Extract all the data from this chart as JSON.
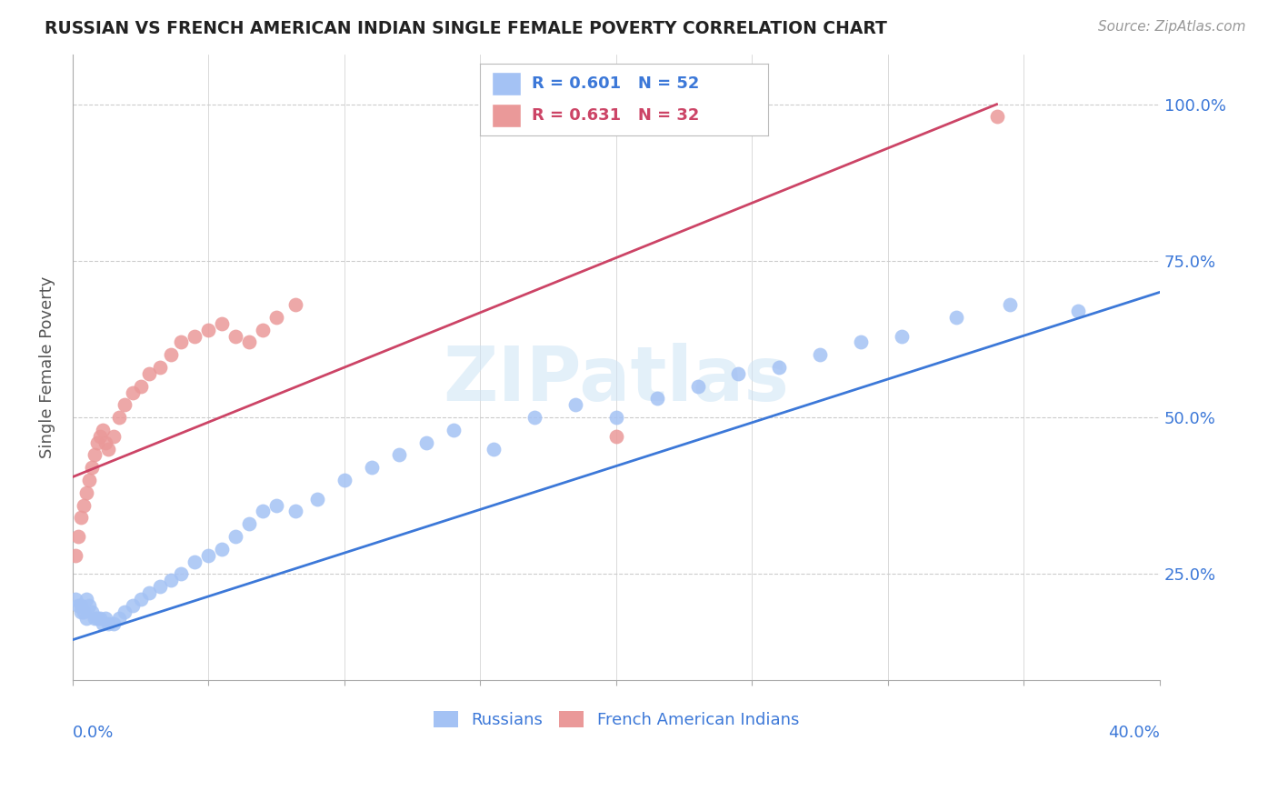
{
  "title": "RUSSIAN VS FRENCH AMERICAN INDIAN SINGLE FEMALE POVERTY CORRELATION CHART",
  "source": "Source: ZipAtlas.com",
  "ylabel": "Single Female Poverty",
  "ytick_values": [
    0.25,
    0.5,
    0.75,
    1.0
  ],
  "ytick_labels": [
    "25.0%",
    "50.0%",
    "75.0%",
    "100.0%"
  ],
  "xlim": [
    0.0,
    0.4
  ],
  "ylim": [
    0.08,
    1.08
  ],
  "blue_R": 0.601,
  "blue_N": 52,
  "pink_R": 0.631,
  "pink_N": 32,
  "blue_color": "#a4c2f4",
  "pink_color": "#ea9999",
  "blue_line_color": "#3c78d8",
  "pink_line_color": "#cc4466",
  "watermark": "ZIPatlas",
  "blue_scatter_x": [
    0.001,
    0.002,
    0.003,
    0.003,
    0.004,
    0.005,
    0.005,
    0.006,
    0.007,
    0.008,
    0.009,
    0.01,
    0.011,
    0.012,
    0.013,
    0.015,
    0.017,
    0.019,
    0.022,
    0.025,
    0.028,
    0.032,
    0.036,
    0.04,
    0.045,
    0.05,
    0.055,
    0.06,
    0.065,
    0.07,
    0.075,
    0.082,
    0.09,
    0.1,
    0.11,
    0.12,
    0.13,
    0.14,
    0.155,
    0.17,
    0.185,
    0.2,
    0.215,
    0.23,
    0.245,
    0.26,
    0.275,
    0.29,
    0.305,
    0.325,
    0.345,
    0.37
  ],
  "blue_scatter_y": [
    0.21,
    0.2,
    0.2,
    0.19,
    0.19,
    0.21,
    0.18,
    0.2,
    0.19,
    0.18,
    0.18,
    0.18,
    0.17,
    0.18,
    0.17,
    0.17,
    0.18,
    0.19,
    0.2,
    0.21,
    0.22,
    0.23,
    0.24,
    0.25,
    0.27,
    0.28,
    0.29,
    0.31,
    0.33,
    0.35,
    0.36,
    0.35,
    0.37,
    0.4,
    0.42,
    0.44,
    0.46,
    0.48,
    0.45,
    0.5,
    0.52,
    0.5,
    0.53,
    0.55,
    0.57,
    0.58,
    0.6,
    0.62,
    0.63,
    0.66,
    0.68,
    0.67
  ],
  "pink_scatter_x": [
    0.001,
    0.002,
    0.003,
    0.004,
    0.005,
    0.006,
    0.007,
    0.008,
    0.009,
    0.01,
    0.011,
    0.012,
    0.013,
    0.015,
    0.017,
    0.019,
    0.022,
    0.025,
    0.028,
    0.032,
    0.036,
    0.04,
    0.045,
    0.05,
    0.055,
    0.06,
    0.065,
    0.07,
    0.075,
    0.082,
    0.2,
    0.34
  ],
  "pink_scatter_y": [
    0.28,
    0.31,
    0.34,
    0.36,
    0.38,
    0.4,
    0.42,
    0.44,
    0.46,
    0.47,
    0.48,
    0.46,
    0.45,
    0.47,
    0.5,
    0.52,
    0.54,
    0.55,
    0.57,
    0.58,
    0.6,
    0.62,
    0.63,
    0.64,
    0.65,
    0.63,
    0.62,
    0.64,
    0.66,
    0.68,
    0.47,
    0.98
  ],
  "blue_line_x": [
    0.0,
    0.4
  ],
  "blue_line_y": [
    0.145,
    0.7
  ],
  "pink_line_x": [
    0.0,
    0.34
  ],
  "pink_line_y": [
    0.405,
    1.0
  ]
}
